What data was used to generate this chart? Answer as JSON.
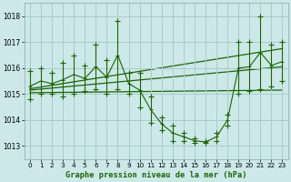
{
  "title": "Graphe pression niveau de la mer (hPa)",
  "bg_color": "#cce8e8",
  "grid_color": "#aacccc",
  "line_color": "#1a6600",
  "xlim": [
    -0.5,
    23.5
  ],
  "ylim": [
    1012.5,
    1018.5
  ],
  "yticks": [
    1013,
    1014,
    1015,
    1016,
    1017,
    1018
  ],
  "xticks": [
    0,
    1,
    2,
    3,
    4,
    5,
    6,
    7,
    8,
    9,
    10,
    11,
    12,
    13,
    14,
    15,
    16,
    17,
    18,
    19,
    20,
    21,
    22,
    23
  ],
  "hours": [
    0,
    1,
    2,
    3,
    4,
    5,
    6,
    7,
    8,
    9,
    10,
    11,
    12,
    13,
    14,
    15,
    16,
    17,
    18,
    19,
    20,
    21,
    22,
    23
  ],
  "pressure_high": [
    1015.9,
    1016.0,
    1015.8,
    1016.2,
    1016.5,
    1016.1,
    1016.9,
    1016.3,
    1017.8,
    1015.8,
    1015.8,
    1014.9,
    1014.1,
    1013.8,
    1013.5,
    1013.3,
    1013.2,
    1013.5,
    1014.2,
    1017.0,
    1017.0,
    1018.0,
    1016.9,
    1017.0
  ],
  "pressure_low": [
    1014.8,
    1015.0,
    1015.0,
    1014.9,
    1015.0,
    1015.1,
    1015.2,
    1015.0,
    1015.2,
    1015.0,
    1014.5,
    1013.9,
    1013.6,
    1013.2,
    1013.2,
    1013.1,
    1013.1,
    1013.2,
    1013.8,
    1015.0,
    1015.1,
    1015.2,
    1015.3,
    1015.5
  ],
  "pressure_avg": [
    1015.3,
    1015.5,
    1015.4,
    1015.55,
    1015.75,
    1015.6,
    1016.05,
    1015.65,
    1016.5,
    1015.4,
    1015.15,
    1014.4,
    1013.85,
    1013.5,
    1013.35,
    1013.2,
    1013.15,
    1013.35,
    1014.0,
    1016.0,
    1016.05,
    1016.6,
    1016.1,
    1016.25
  ],
  "trend_lines": [
    [
      0,
      1015.05,
      23,
      1015.15
    ],
    [
      0,
      1015.15,
      23,
      1016.05
    ],
    [
      0,
      1015.2,
      23,
      1016.75
    ]
  ]
}
